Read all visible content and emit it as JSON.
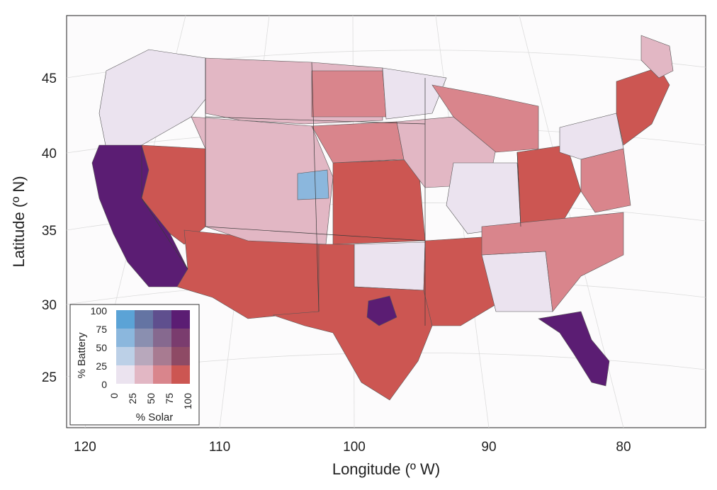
{
  "map": {
    "xlabel": "Longitude (º W)",
    "ylabel": "Latitude (º N)",
    "x_ticks": [
      "120",
      "110",
      "100",
      "90",
      "80"
    ],
    "y_ticks": [
      "45",
      "40",
      "35",
      "30",
      "25"
    ]
  },
  "legend": {
    "y_title": "% Battery",
    "x_title": "% Solar",
    "y_ticks": [
      "100",
      "75",
      "50",
      "25",
      "0"
    ],
    "x_ticks": [
      "0",
      "25",
      "50",
      "75",
      "100"
    ],
    "colors": [
      [
        "#5ba3d6",
        "#6474a3",
        "#5f4f8e",
        "#5b1d73"
      ],
      [
        "#8bb7dd",
        "#8a8fb0",
        "#86698f",
        "#7a3c6e"
      ],
      [
        "#bcd0e7",
        "#b8a8bc",
        "#a87b91",
        "#8e4a65"
      ],
      [
        "#ebe3ef",
        "#e2b7c4",
        "#d9858c",
        "#cc5652"
      ]
    ]
  },
  "colors": {
    "none": "#ebe3ef",
    "solar_25": "#e2b7c4",
    "solar_50": "#d9858c",
    "solar_high": "#cc5652",
    "purple": "#5b1d73",
    "battery_blue": "#8bb7dd",
    "border": "#3a3a3a"
  }
}
